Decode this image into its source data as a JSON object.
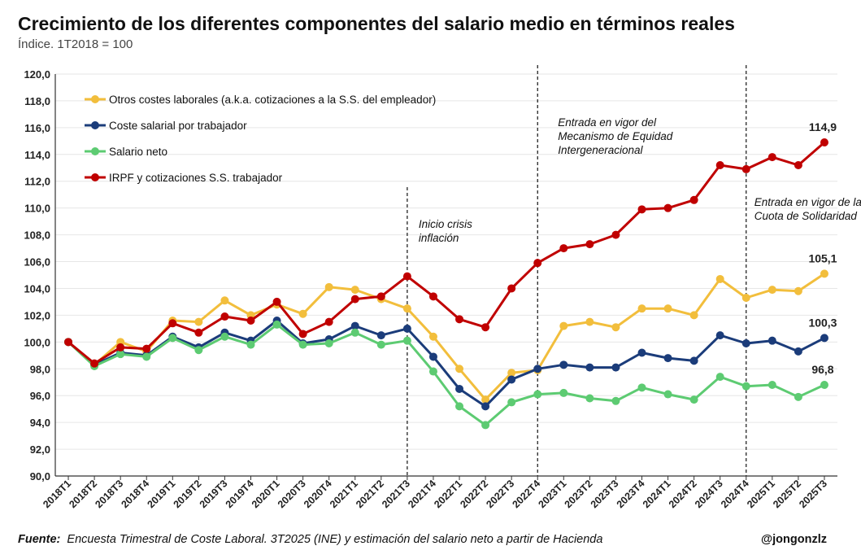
{
  "header": {
    "title": "Crecimiento de los diferentes componentes del salario medio en términos reales",
    "subtitle": "Índice. 1T2018 = 100"
  },
  "footer": {
    "source_label": "Fuente:",
    "source_text": "Encuesta Trimestral de Coste Laboral. 3T2025 (INE) y estimación del salario neto a partir de Hacienda",
    "handle": "@jongonzlz"
  },
  "chart_data": {
    "type": "line",
    "ylim": [
      90,
      120
    ],
    "ytick_step": 2,
    "ytick_labels": [
      "90,0",
      "92,0",
      "94,0",
      "96,0",
      "98,0",
      "100,0",
      "102,0",
      "104,0",
      "106,0",
      "108,0",
      "110,0",
      "112,0",
      "114,0",
      "116,0",
      "118,0",
      "120,0"
    ],
    "grid": true,
    "legend_position": "top-left",
    "categories": [
      "2018T1",
      "2018T2",
      "2018T3",
      "2018T4",
      "2019T1",
      "2019T2",
      "2019T3",
      "2019T4",
      "2020T1",
      "2020T3",
      "2020T4",
      "2021T1",
      "2021T2",
      "2021T3",
      "2021T4",
      "2022T1",
      "2022T2",
      "2022T3",
      "2022T4",
      "2023T1",
      "2023T2",
      "2023T3",
      "2023T4",
      "2024T1",
      "2024T2",
      "2024T3",
      "2024T4",
      "2025T1",
      "2025T2",
      "2025T3"
    ],
    "series": [
      {
        "name": "Otros costes laborales (a.k.a. cotizaciones a la S.S. del empleador)",
        "color": "#F2BE3C",
        "values": [
          100.0,
          98.3,
          100.0,
          99.3,
          101.6,
          101.5,
          103.1,
          102.0,
          102.8,
          102.1,
          104.1,
          103.9,
          103.2,
          102.5,
          100.4,
          98.0,
          95.7,
          97.7,
          97.9,
          101.2,
          101.5,
          101.1,
          102.5,
          102.5,
          102.0,
          104.7,
          103.3,
          103.9,
          103.8,
          105.1
        ]
      },
      {
        "name": "Coste salarial por trabajador",
        "color": "#1B3C7A",
        "values": [
          100.0,
          98.3,
          99.2,
          99.0,
          100.4,
          99.6,
          100.7,
          100.1,
          101.6,
          99.9,
          100.2,
          101.2,
          100.5,
          101.0,
          98.9,
          96.5,
          95.2,
          97.2,
          98.0,
          98.3,
          98.1,
          98.1,
          99.2,
          98.8,
          98.6,
          100.5,
          99.9,
          100.1,
          99.3,
          100.3
        ]
      },
      {
        "name": "Salario neto",
        "color": "#5DCB72",
        "values": [
          100.0,
          98.2,
          99.1,
          98.9,
          100.3,
          99.4,
          100.4,
          99.8,
          101.3,
          99.8,
          99.9,
          100.7,
          99.8,
          100.1,
          97.8,
          95.2,
          93.8,
          95.5,
          96.1,
          96.2,
          95.8,
          95.6,
          96.6,
          96.1,
          95.7,
          97.4,
          96.7,
          96.8,
          95.9,
          96.8
        ]
      },
      {
        "name": "IRPF y cotizaciones S.S. trabajador",
        "color": "#C00000",
        "values": [
          100.0,
          98.4,
          99.6,
          99.5,
          101.4,
          100.7,
          101.9,
          101.6,
          103.0,
          100.6,
          101.5,
          103.2,
          103.4,
          104.9,
          103.4,
          101.7,
          101.1,
          104.0,
          105.9,
          107.0,
          107.3,
          108.0,
          109.9,
          110.0,
          110.6,
          113.2,
          112.9,
          113.8,
          113.2,
          114.9
        ]
      }
    ],
    "end_labels": [
      {
        "series": 3,
        "text": "114,9"
      },
      {
        "series": 0,
        "text": "105,1"
      },
      {
        "series": 1,
        "text": "100,3"
      },
      {
        "series": 2,
        "text": "96,8"
      }
    ],
    "annotations": [
      {
        "after_category": "2021T3",
        "lines": [
          "Inicio crisis",
          "inflación"
        ]
      },
      {
        "after_category": "2022T4",
        "lines": [
          "Entrada en vigor del",
          "Mecanismo de Equidad",
          "Intergeneracional"
        ]
      },
      {
        "after_category": "2024T4",
        "lines": [
          "Entrada en vigor de la",
          "Cuota de Solidaridad"
        ]
      }
    ]
  }
}
